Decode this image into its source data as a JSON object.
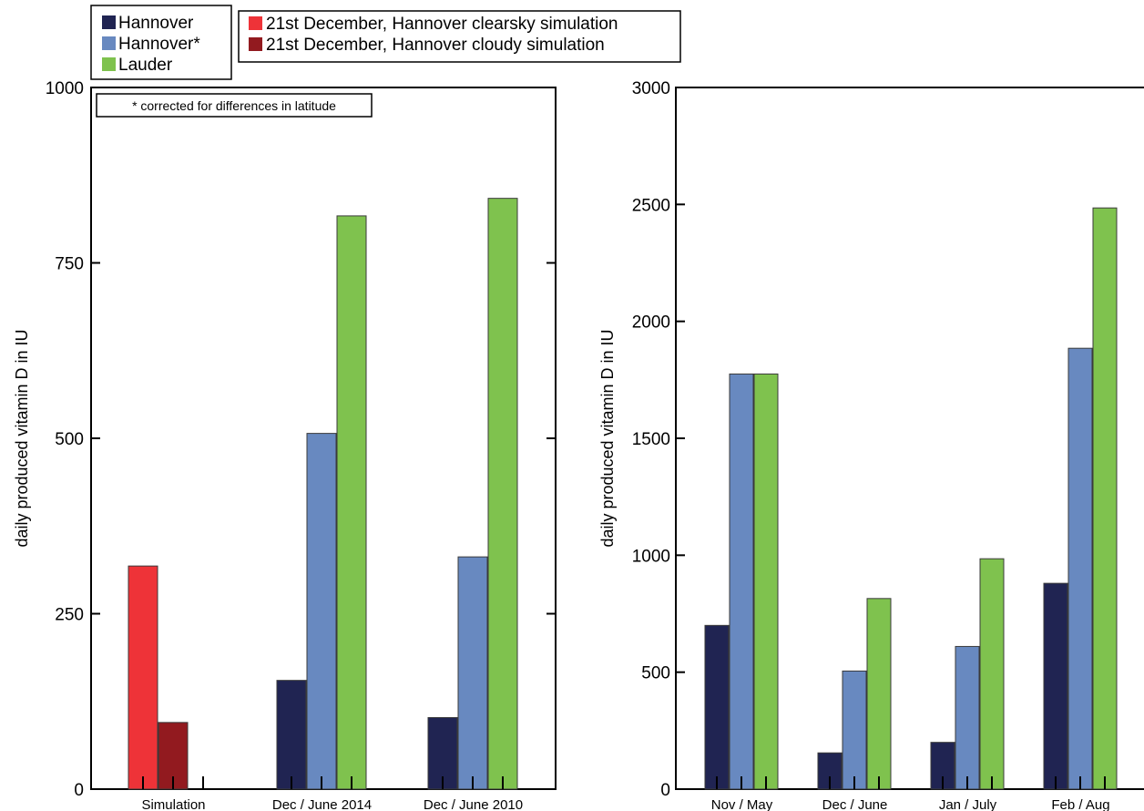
{
  "legend_left": [
    {
      "label": "Hannover",
      "color": "#202452"
    },
    {
      "label": "Hannover*",
      "color": "#6889c0"
    },
    {
      "label": "Lauder",
      "color": "#7fc24e"
    }
  ],
  "legend_right": [
    {
      "label": "21st December, Hannover clearsky simulation",
      "color": "#ee3338"
    },
    {
      "label": "21st December, Hannover cloudy simulation",
      "color": "#921a1f"
    }
  ],
  "chart_data": [
    {
      "type": "bar",
      "ylabel": "daily produced vitamin D in IU",
      "ylim": [
        0,
        1000
      ],
      "yticks": [
        0,
        250,
        500,
        750,
        1000
      ],
      "annotation": "* corrected for differences in latitude",
      "categories": [
        "Simulation",
        "Dec / June 2014",
        "Dec / June 2010"
      ],
      "series": [
        {
          "name": "21st December, Hannover clearsky simulation",
          "color": "#ee3338",
          "values": [
            318,
            null,
            null
          ]
        },
        {
          "name": "21st December, Hannover cloudy simulation",
          "color": "#921a1f",
          "values": [
            95,
            null,
            null
          ]
        },
        {
          "name": "Hannover",
          "color": "#202452",
          "values": [
            null,
            155,
            102
          ]
        },
        {
          "name": "Hannover*",
          "color": "#6889c0",
          "values": [
            null,
            507,
            331
          ]
        },
        {
          "name": "Lauder",
          "color": "#7fc24e",
          "values": [
            null,
            817,
            842
          ]
        }
      ]
    },
    {
      "type": "bar",
      "ylabel": "daily produced vitamin D in IU",
      "ylim": [
        0,
        3000
      ],
      "yticks": [
        0,
        500,
        1000,
        1500,
        2000,
        2500,
        3000
      ],
      "categories": [
        "Nov / May",
        "Dec / June",
        "Jan / July",
        "Feb / Aug"
      ],
      "series": [
        {
          "name": "Hannover",
          "color": "#202452",
          "values": [
            700,
            155,
            200,
            880
          ]
        },
        {
          "name": "Hannover*",
          "color": "#6889c0",
          "values": [
            1775,
            505,
            610,
            1885
          ]
        },
        {
          "name": "Lauder",
          "color": "#7fc24e",
          "values": [
            1775,
            815,
            985,
            2485
          ]
        }
      ]
    }
  ]
}
